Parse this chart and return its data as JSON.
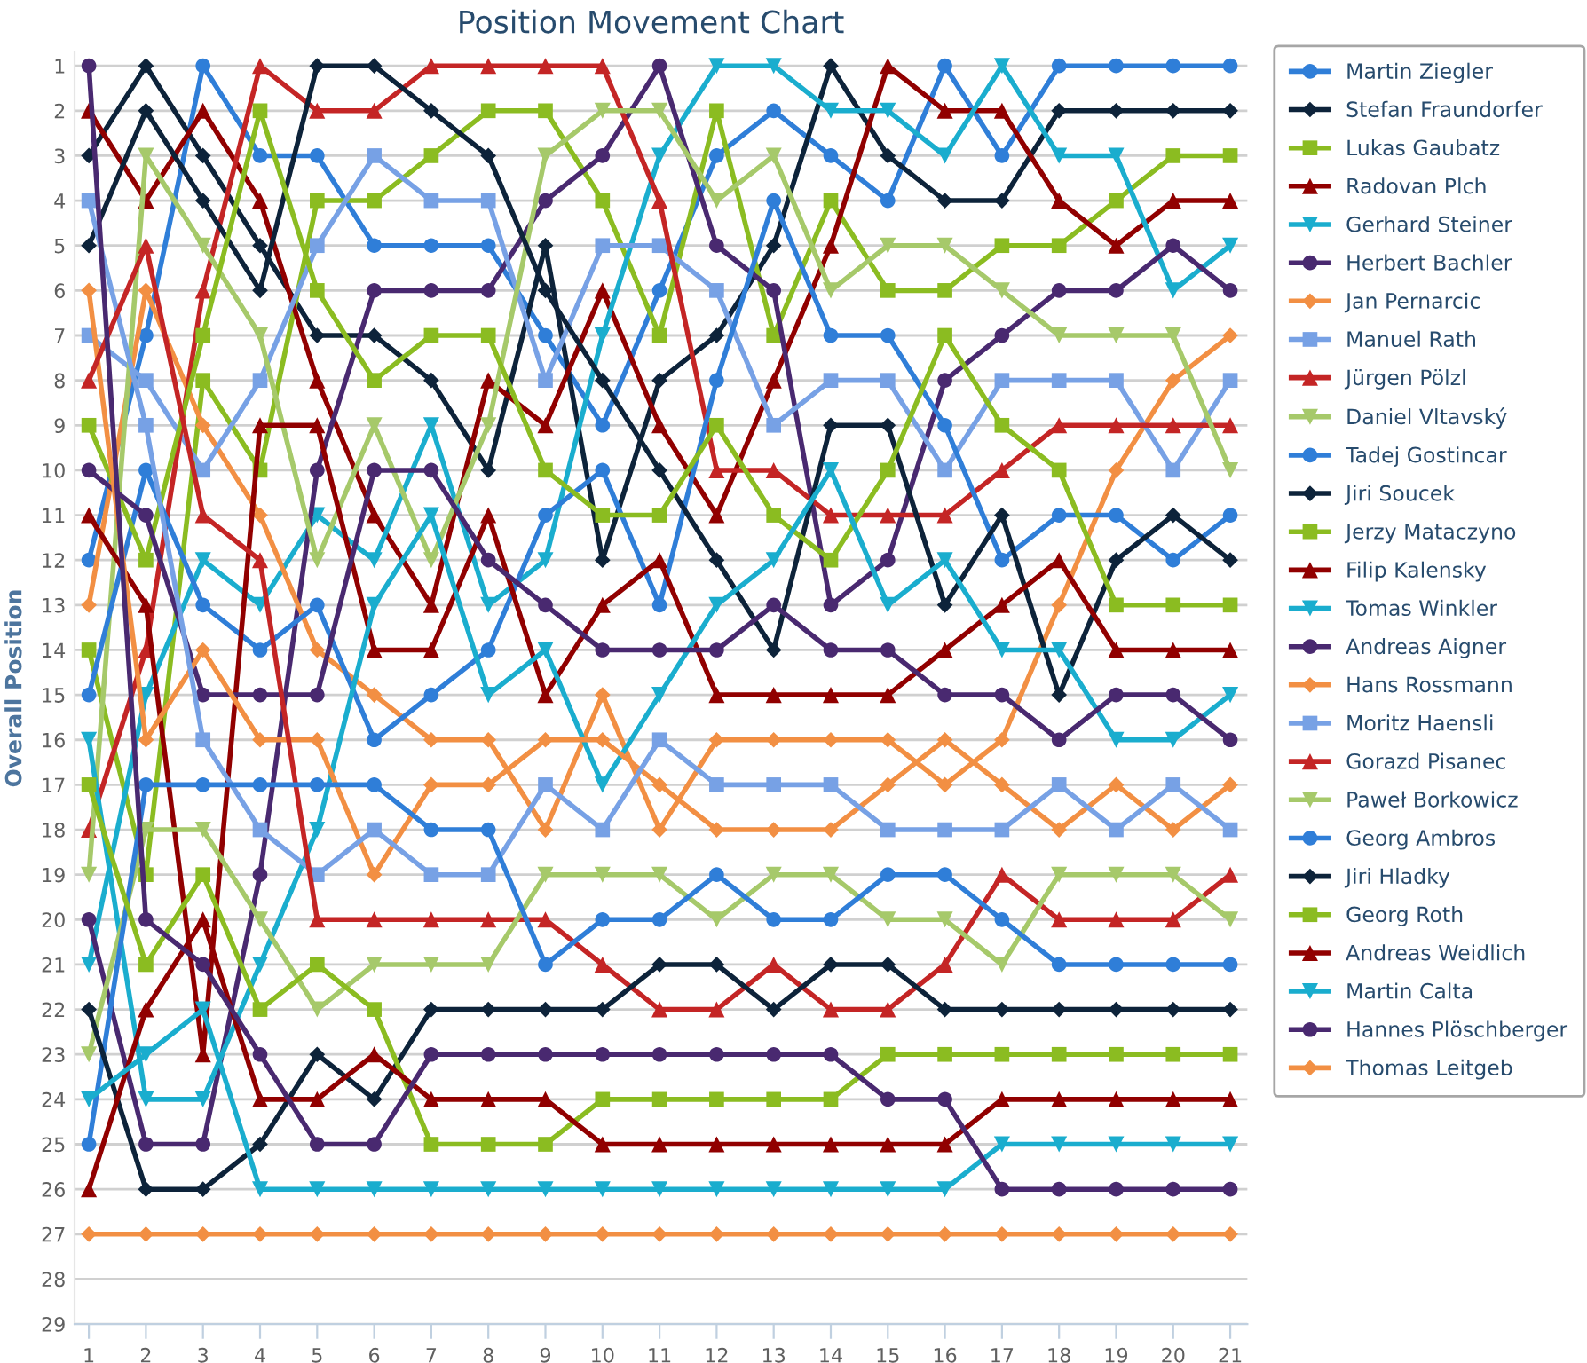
{
  "chart_data": {
    "type": "line",
    "title": "Position Movement Chart",
    "ylabel": "Overall Position",
    "x": [
      1,
      2,
      3,
      4,
      5,
      6,
      7,
      8,
      9,
      10,
      11,
      12,
      13,
      14,
      15,
      16,
      17,
      18,
      19,
      20,
      21
    ],
    "xlim": [
      0.75,
      21.3
    ],
    "xticks": [
      1,
      2,
      3,
      4,
      5,
      6,
      7,
      8,
      9,
      10,
      11,
      12,
      13,
      14,
      15,
      16,
      17,
      18,
      19,
      20,
      21
    ],
    "ylim": [
      29,
      0.7
    ],
    "yticks": [
      1,
      2,
      3,
      4,
      5,
      6,
      7,
      8,
      9,
      10,
      11,
      12,
      13,
      14,
      15,
      16,
      17,
      18,
      19,
      20,
      21,
      22,
      23,
      24,
      25,
      26,
      27,
      28,
      29
    ],
    "grid": "y",
    "legend": "right",
    "series": [
      {
        "name": "Martin Ziegler",
        "color": "#2f7ed8",
        "marker": "circle",
        "values": [
          12,
          7,
          1,
          3,
          3,
          5,
          5,
          5,
          7,
          9,
          6,
          3,
          2,
          3,
          4,
          1,
          3,
          1,
          1,
          1,
          1
        ]
      },
      {
        "name": "Stefan Fraundorfer",
        "color": "#0d233a",
        "marker": "diamond",
        "values": [
          3,
          1,
          3,
          5,
          7,
          7,
          8,
          10,
          5,
          12,
          8,
          7,
          5,
          1,
          3,
          4,
          4,
          2,
          2,
          2,
          2
        ]
      },
      {
        "name": "Lukas Gaubatz",
        "color": "#8bbc21",
        "marker": "square",
        "values": [
          14,
          19,
          8,
          10,
          4,
          4,
          3,
          2,
          2,
          4,
          7,
          2,
          7,
          4,
          6,
          6,
          5,
          5,
          4,
          3,
          3
        ]
      },
      {
        "name": "Radovan Plch",
        "color": "#910000",
        "marker": "triangle",
        "values": [
          2,
          4,
          2,
          4,
          8,
          11,
          13,
          8,
          9,
          6,
          9,
          11,
          8,
          5,
          1,
          2,
          2,
          4,
          5,
          4,
          4
        ]
      },
      {
        "name": "Gerhard Steiner",
        "color": "#1aadce",
        "marker": "triangle_down",
        "values": [
          21,
          15,
          12,
          13,
          11,
          12,
          9,
          13,
          12,
          7,
          3,
          1,
          1,
          2,
          2,
          3,
          1,
          3,
          3,
          6,
          5
        ]
      },
      {
        "name": "Herbert Bachler",
        "color": "#492970",
        "marker": "circle",
        "values": [
          20,
          25,
          25,
          19,
          10,
          6,
          6,
          6,
          4,
          3,
          1,
          5,
          6,
          13,
          12,
          8,
          7,
          6,
          6,
          5,
          6
        ]
      },
      {
        "name": "Jan Pernarcic",
        "color": "#f28f43",
        "marker": "diamond",
        "values": [
          13,
          6,
          9,
          11,
          14,
          15,
          16,
          16,
          18,
          15,
          18,
          16,
          16,
          16,
          16,
          17,
          16,
          13,
          10,
          8,
          7
        ]
      },
      {
        "name": "Manuel Rath",
        "color": "#77a1e5",
        "marker": "square",
        "values": [
          7,
          8,
          10,
          8,
          5,
          3,
          4,
          4,
          8,
          5,
          5,
          6,
          9,
          8,
          8,
          10,
          8,
          8,
          8,
          10,
          8
        ]
      },
      {
        "name": "Jürgen Pölzl",
        "color": "#c42525",
        "marker": "triangle",
        "values": [
          18,
          14,
          6,
          1,
          2,
          2,
          1,
          1,
          1,
          1,
          4,
          10,
          10,
          11,
          11,
          11,
          10,
          9,
          9,
          9,
          9
        ]
      },
      {
        "name": "Daniel Vltavský",
        "color": "#a6c96a",
        "marker": "triangle_down",
        "values": [
          19,
          3,
          5,
          7,
          12,
          9,
          12,
          9,
          3,
          2,
          2,
          4,
          3,
          6,
          5,
          5,
          6,
          7,
          7,
          7,
          10
        ]
      },
      {
        "name": "Tadej Gostincar",
        "color": "#2f7ed8",
        "marker": "circle",
        "values": [
          15,
          10,
          13,
          14,
          13,
          16,
          15,
          14,
          11,
          10,
          13,
          8,
          4,
          7,
          7,
          9,
          12,
          11,
          11,
          12,
          11
        ]
      },
      {
        "name": "Jiri Soucek",
        "color": "#0d233a",
        "marker": "diamond",
        "values": [
          5,
          2,
          4,
          6,
          1,
          1,
          2,
          3,
          6,
          8,
          10,
          12,
          14,
          9,
          9,
          13,
          11,
          15,
          12,
          11,
          12
        ]
      },
      {
        "name": "Jerzy Mataczyno",
        "color": "#8bbc21",
        "marker": "square",
        "values": [
          9,
          12,
          7,
          2,
          6,
          8,
          7,
          7,
          10,
          11,
          11,
          9,
          11,
          12,
          10,
          7,
          9,
          10,
          13,
          13,
          13
        ]
      },
      {
        "name": "Filip Kalensky",
        "color": "#910000",
        "marker": "triangle",
        "values": [
          11,
          13,
          23,
          9,
          9,
          14,
          14,
          11,
          15,
          13,
          12,
          15,
          15,
          15,
          15,
          14,
          13,
          12,
          14,
          14,
          14
        ]
      },
      {
        "name": "Tomas Winkler",
        "color": "#1aadce",
        "marker": "triangle_down",
        "values": [
          16,
          24,
          24,
          21,
          18,
          13,
          11,
          15,
          14,
          17,
          15,
          13,
          12,
          10,
          13,
          12,
          14,
          14,
          16,
          16,
          15
        ]
      },
      {
        "name": "Andreas Aigner",
        "color": "#492970",
        "marker": "circle",
        "values": [
          10,
          11,
          15,
          15,
          15,
          10,
          10,
          12,
          13,
          14,
          14,
          14,
          13,
          14,
          14,
          15,
          15,
          16,
          15,
          15,
          16
        ]
      },
      {
        "name": "Hans Rossmann",
        "color": "#f28f43",
        "marker": "diamond",
        "values": [
          6,
          16,
          14,
          16,
          16,
          19,
          17,
          17,
          16,
          16,
          17,
          18,
          18,
          18,
          17,
          16,
          17,
          18,
          17,
          18,
          17
        ]
      },
      {
        "name": "Moritz Haensli",
        "color": "#77a1e5",
        "marker": "square",
        "values": [
          4,
          9,
          16,
          18,
          19,
          18,
          19,
          19,
          17,
          18,
          16,
          17,
          17,
          17,
          18,
          18,
          18,
          17,
          18,
          17,
          18
        ]
      },
      {
        "name": "Gorazd Pisanec",
        "color": "#c42525",
        "marker": "triangle",
        "values": [
          8,
          5,
          11,
          12,
          20,
          20,
          20,
          20,
          20,
          21,
          22,
          22,
          21,
          22,
          22,
          21,
          19,
          20,
          20,
          20,
          19
        ]
      },
      {
        "name": "Paweł Borkowicz",
        "color": "#a6c96a",
        "marker": "triangle_down",
        "values": [
          23,
          18,
          18,
          20,
          22,
          21,
          21,
          21,
          19,
          19,
          19,
          20,
          19,
          19,
          20,
          20,
          21,
          19,
          19,
          19,
          20
        ]
      },
      {
        "name": "Georg Ambros",
        "color": "#2f7ed8",
        "marker": "circle",
        "values": [
          25,
          17,
          17,
          17,
          17,
          17,
          18,
          18,
          21,
          20,
          20,
          19,
          20,
          20,
          19,
          19,
          20,
          21,
          21,
          21,
          21
        ]
      },
      {
        "name": "Jiri Hladky",
        "color": "#0d233a",
        "marker": "diamond",
        "values": [
          22,
          26,
          26,
          25,
          23,
          24,
          22,
          22,
          22,
          22,
          21,
          21,
          22,
          21,
          21,
          22,
          22,
          22,
          22,
          22,
          22
        ]
      },
      {
        "name": "Georg Roth",
        "color": "#8bbc21",
        "marker": "square",
        "values": [
          17,
          21,
          19,
          22,
          21,
          22,
          25,
          25,
          25,
          24,
          24,
          24,
          24,
          24,
          23,
          23,
          23,
          23,
          23,
          23,
          23
        ]
      },
      {
        "name": "Andreas Weidlich",
        "color": "#910000",
        "marker": "triangle",
        "values": [
          26,
          22,
          20,
          24,
          24,
          23,
          24,
          24,
          24,
          25,
          25,
          25,
          25,
          25,
          25,
          25,
          24,
          24,
          24,
          24,
          24
        ]
      },
      {
        "name": "Martin Calta",
        "color": "#1aadce",
        "marker": "triangle_down",
        "values": [
          24,
          23,
          22,
          26,
          26,
          26,
          26,
          26,
          26,
          26,
          26,
          26,
          26,
          26,
          26,
          26,
          25,
          25,
          25,
          25,
          25
        ]
      },
      {
        "name": "Hannes Plöschberger",
        "color": "#492970",
        "marker": "circle",
        "values": [
          1,
          20,
          21,
          23,
          25,
          25,
          23,
          23,
          23,
          23,
          23,
          23,
          23,
          23,
          24,
          24,
          26,
          26,
          26,
          26,
          26
        ]
      },
      {
        "name": "Thomas Leitgeb",
        "color": "#f28f43",
        "marker": "diamond",
        "values": [
          27,
          27,
          27,
          27,
          27,
          27,
          27,
          27,
          27,
          27,
          27,
          27,
          27,
          27,
          27,
          27,
          27,
          27,
          27,
          27,
          27
        ]
      }
    ]
  }
}
